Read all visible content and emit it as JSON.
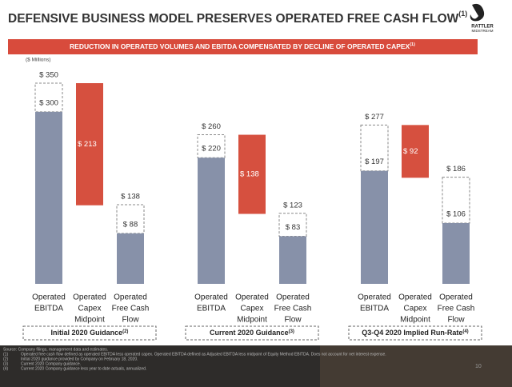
{
  "chart_data": {
    "type": "waterfall",
    "title": "DEFENSIVE BUSINESS MODEL PRESERVES OPERATED FREE CASH FLOW",
    "title_note": "(1)",
    "subtitle": "REDUCTION IN OPERATED VOLUMES AND EBITDA COMPENSATED BY DECLINE OF OPERATED CAPEX",
    "subtitle_note": "(1)",
    "unit_label": "($ Millions)",
    "categories": [
      [
        "Operated",
        "EBITDA"
      ],
      [
        "Operated",
        "Capex",
        "Midpoint"
      ],
      [
        "Operated",
        "Free Cash",
        "Flow"
      ]
    ],
    "ylim": [
      0,
      350
    ],
    "colors": {
      "solid": "#8791a9",
      "capex": "#d6503f"
    },
    "groups": [
      {
        "name": "Initial 2020 Guidance",
        "note": "(2)",
        "values": [
          300,
          213,
          88
        ],
        "value_labels": [
          "$ 300",
          "$ 213",
          "$ 88"
        ],
        "totals": [
          350,
          null,
          138
        ],
        "total_labels": [
          "$ 350",
          null,
          "$ 138"
        ]
      },
      {
        "name": "Current 2020 Guidance",
        "note": "(3)",
        "values": [
          220,
          138,
          83
        ],
        "value_labels": [
          "$ 220",
          "$ 138",
          "$ 83"
        ],
        "totals": [
          260,
          null,
          123
        ],
        "total_labels": [
          "$ 260",
          null,
          "$ 123"
        ]
      },
      {
        "name": "Q3-Q4 2020 Implied Run-Rate",
        "note": "(4)",
        "values": [
          197,
          92,
          106
        ],
        "value_labels": [
          "$ 197",
          "$ 92",
          "$ 106"
        ],
        "totals": [
          277,
          null,
          186
        ],
        "total_labels": [
          "$ 277",
          null,
          "$ 186"
        ]
      }
    ],
    "logo": [
      "RATTLER",
      "MIDSTREAM"
    ],
    "source": "Source: Company filings, management data and estimates.",
    "footnotes": [
      {
        "marker": "(1)",
        "text": "Operated free cash flow defined as operated EBITDA less operated capex. Operated EBITDA defined as Adjusted EBITDA less midpoint of Equity Method EBITDA. Does not account for net interest expense."
      },
      {
        "marker": "(2)",
        "text": "Initial 2020 guidance provided by Company on February 18, 2020."
      },
      {
        "marker": "(3)",
        "text": "Current 2020 Company guidance."
      },
      {
        "marker": "(4)",
        "text": "Current 2020 Company guidance less year to date actuals, annualized."
      }
    ],
    "page_number": "10"
  }
}
